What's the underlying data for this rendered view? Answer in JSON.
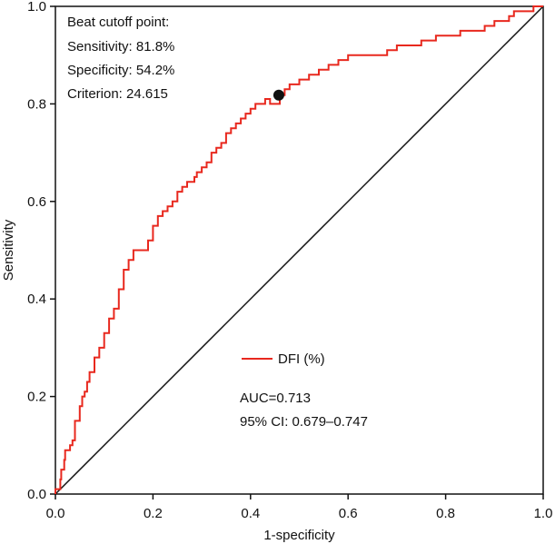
{
  "chart_data": {
    "type": "line",
    "title": "",
    "xlabel": "1-specificity",
    "ylabel": "Sensitivity",
    "xlim": [
      0,
      1
    ],
    "ylim": [
      0,
      1
    ],
    "xticks": [
      "0.0",
      "0.2",
      "0.4",
      "0.6",
      "0.8",
      "1.0"
    ],
    "yticks": [
      "0.0",
      "0.2",
      "0.4",
      "0.6",
      "0.8",
      "1.0"
    ],
    "grid": false,
    "series": [
      {
        "name": "DFI (%)",
        "color": "#e8281e",
        "x": [
          0,
          0.01,
          0.012,
          0.018,
          0.02,
          0.03,
          0.035,
          0.04,
          0.05,
          0.055,
          0.06,
          0.065,
          0.07,
          0.08,
          0.09,
          0.1,
          0.11,
          0.12,
          0.13,
          0.14,
          0.15,
          0.16,
          0.17,
          0.18,
          0.19,
          0.2,
          0.21,
          0.22,
          0.225,
          0.23,
          0.24,
          0.25,
          0.26,
          0.27,
          0.28,
          0.285,
          0.29,
          0.3,
          0.31,
          0.32,
          0.33,
          0.34,
          0.35,
          0.36,
          0.37,
          0.38,
          0.39,
          0.4,
          0.41,
          0.42,
          0.43,
          0.44,
          0.45,
          0.455,
          0.46,
          0.47,
          0.48,
          0.5,
          0.52,
          0.54,
          0.56,
          0.58,
          0.6,
          0.63,
          0.65,
          0.68,
          0.7,
          0.73,
          0.75,
          0.78,
          0.8,
          0.83,
          0.85,
          0.88,
          0.9,
          0.93,
          0.94,
          0.96,
          0.98,
          1.0
        ],
        "y": [
          0,
          0.01,
          0.03,
          0.05,
          0.07,
          0.09,
          0.1,
          0.11,
          0.15,
          0.18,
          0.2,
          0.21,
          0.23,
          0.25,
          0.28,
          0.3,
          0.33,
          0.36,
          0.38,
          0.42,
          0.46,
          0.48,
          0.5,
          0.5,
          0.5,
          0.52,
          0.55,
          0.57,
          0.58,
          0.58,
          0.59,
          0.6,
          0.62,
          0.63,
          0.64,
          0.64,
          0.65,
          0.66,
          0.67,
          0.68,
          0.7,
          0.71,
          0.72,
          0.74,
          0.75,
          0.76,
          0.77,
          0.78,
          0.79,
          0.8,
          0.8,
          0.81,
          0.8,
          0.8,
          0.8,
          0.818,
          0.83,
          0.84,
          0.85,
          0.86,
          0.87,
          0.88,
          0.89,
          0.9,
          0.9,
          0.9,
          0.91,
          0.92,
          0.92,
          0.93,
          0.94,
          0.94,
          0.95,
          0.95,
          0.96,
          0.97,
          0.98,
          0.99,
          0.99,
          1.0
        ]
      },
      {
        "name": "Reference line",
        "color": "#111111",
        "x": [
          0,
          1
        ],
        "y": [
          0,
          1
        ]
      }
    ],
    "cutoff_point": {
      "x": 0.458,
      "y": 0.818
    },
    "annotations": {
      "title": "Beat cutoff point:",
      "sensitivity": "Sensitivity: 81.8%",
      "specificity": "Specificity: 54.2%",
      "criterion": "Criterion: 24.615"
    },
    "legend": {
      "label": "DFI (%)",
      "placement": "center-right"
    },
    "stats": {
      "auc": "AUC=0.713",
      "ci": "95% CI: 0.679–0.747"
    }
  }
}
